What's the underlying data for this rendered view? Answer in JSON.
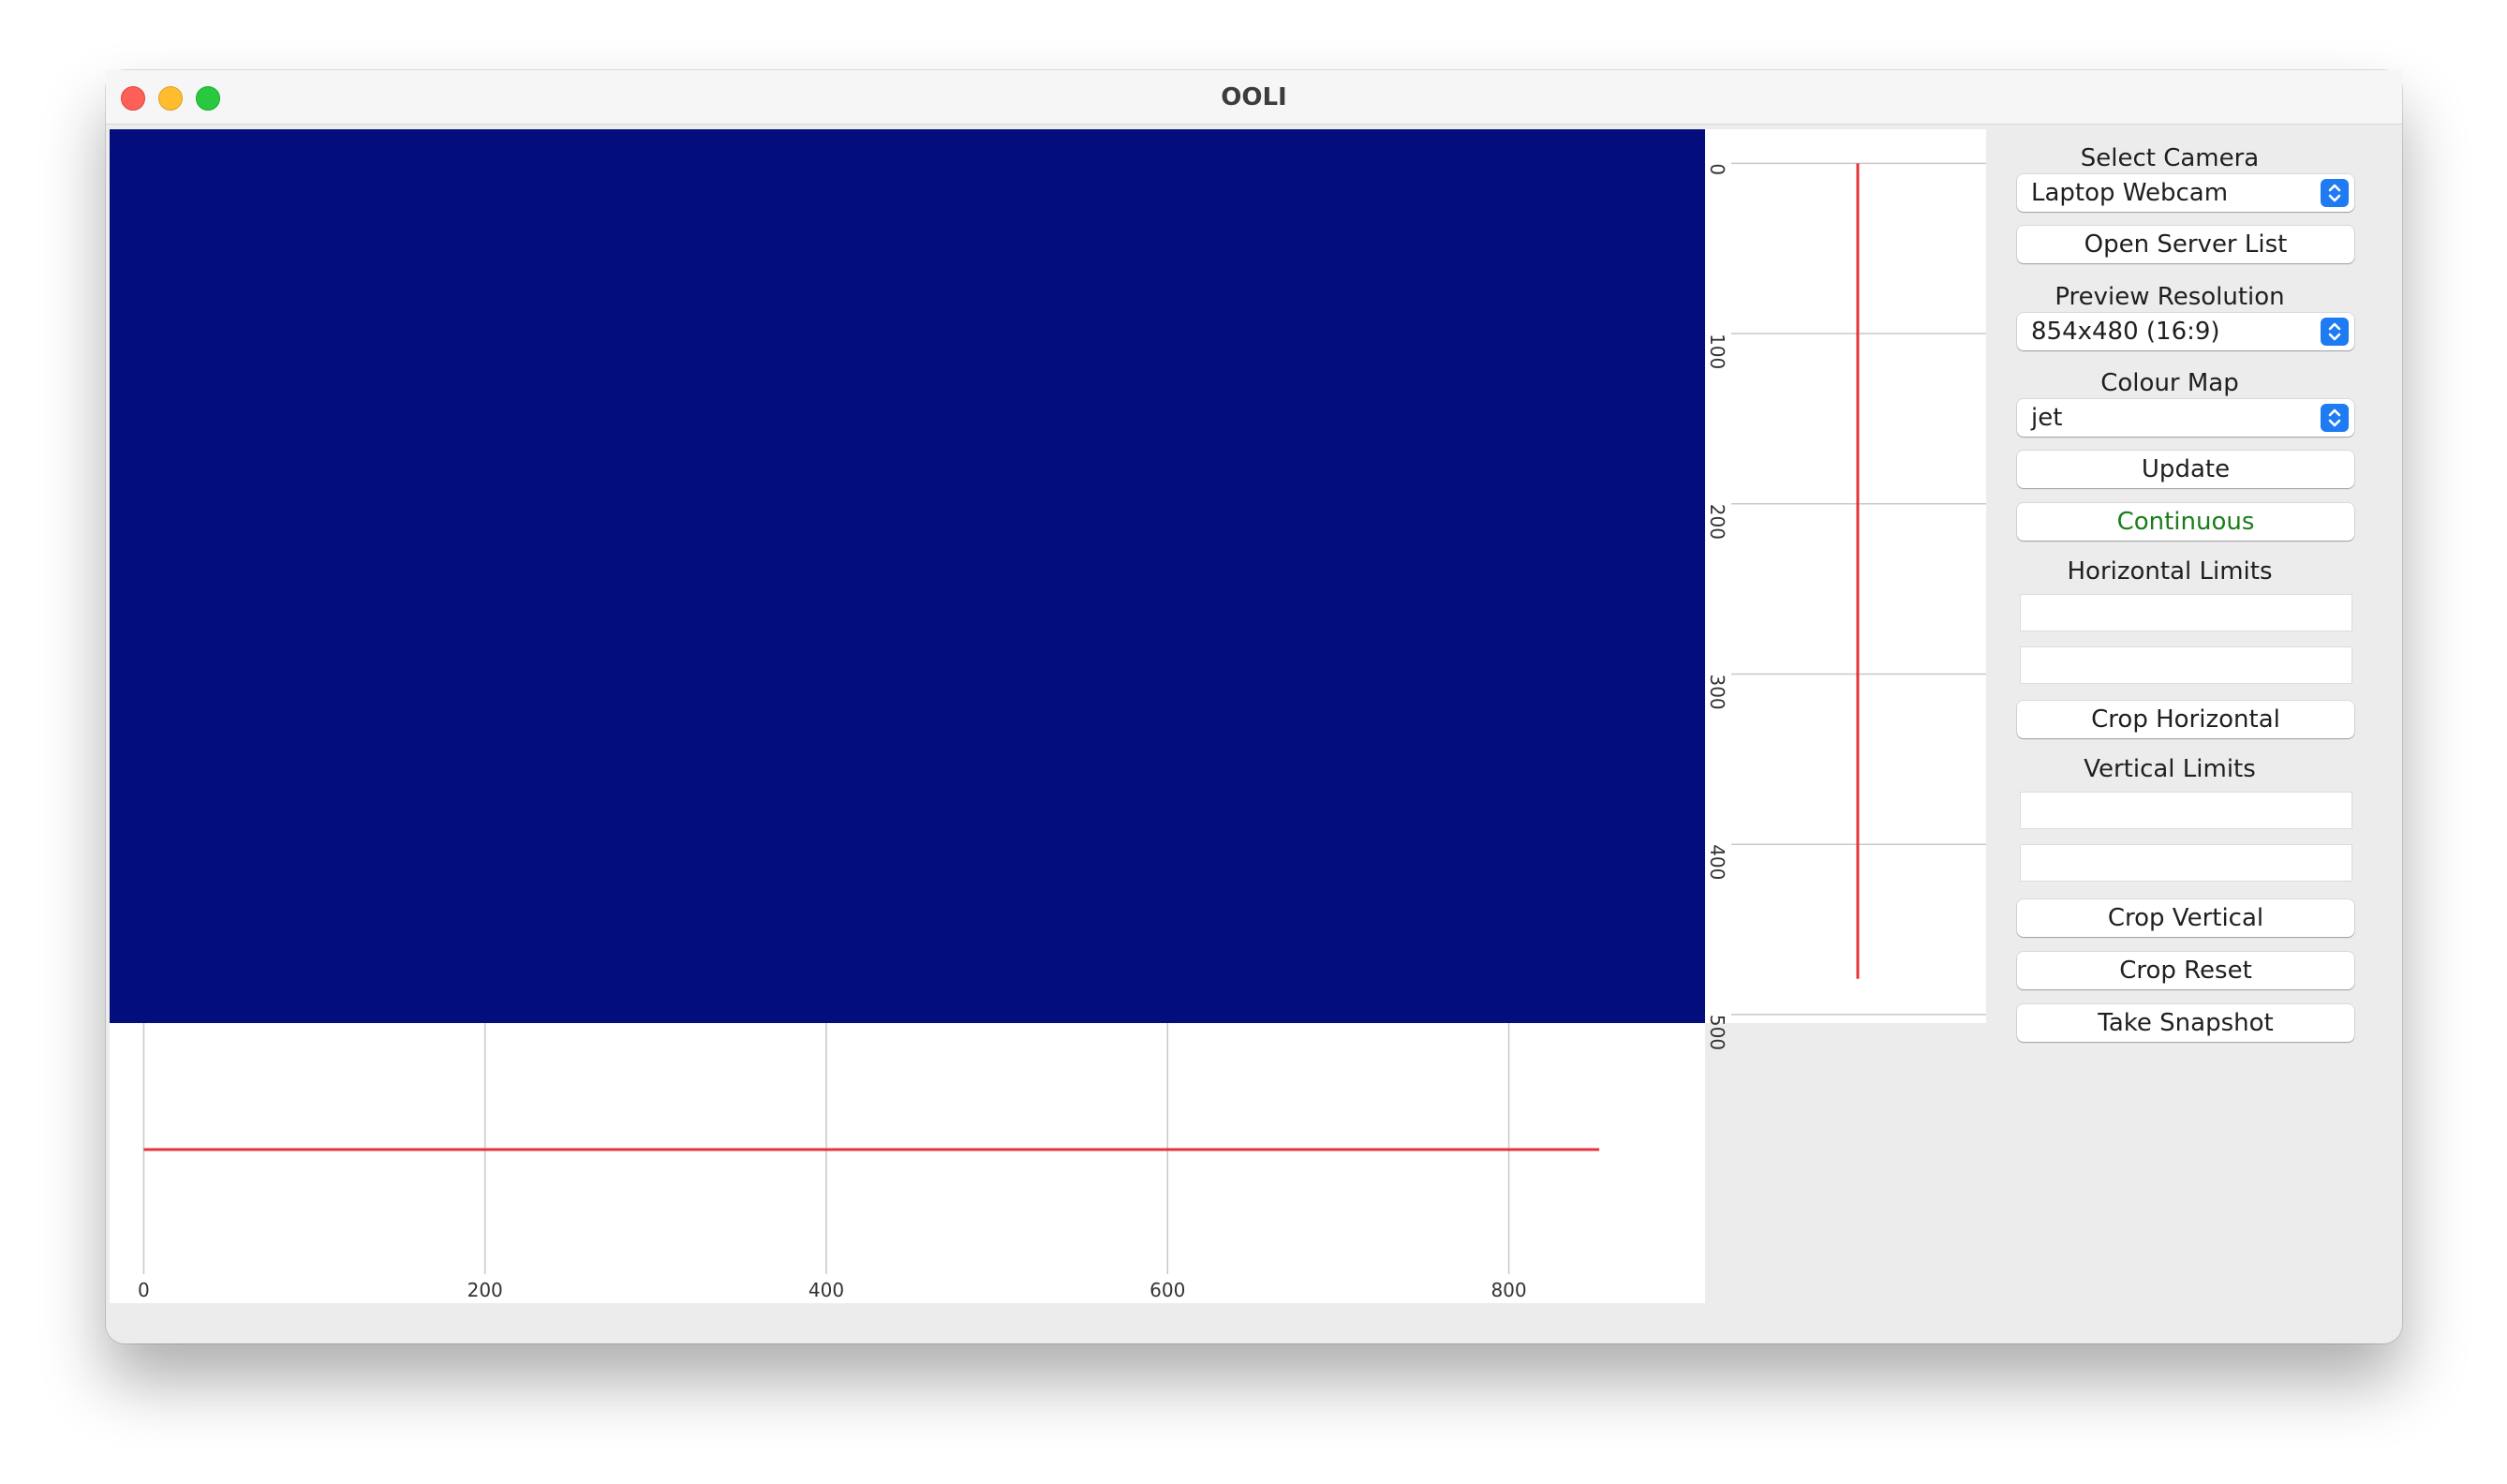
{
  "window": {
    "title": "OOLI"
  },
  "preview": {
    "background": "#030d7b",
    "trace_color": "#e5333b"
  },
  "horizontal_profile": {
    "x_ticks": [
      "0",
      "200",
      "400",
      "600",
      "800"
    ],
    "x_tick_values": [
      0,
      200,
      400,
      600,
      800
    ],
    "x_range": [
      -20,
      915
    ],
    "profile_x_range": [
      0,
      853
    ],
    "profile_level": 0
  },
  "vertical_profile": {
    "y_ticks": [
      "0",
      "100",
      "200",
      "300",
      "400",
      "500"
    ],
    "y_tick_values": [
      0,
      100,
      200,
      300,
      400,
      500
    ],
    "y_range": [
      -20,
      505
    ],
    "profile_y_range": [
      0,
      479
    ],
    "profile_level": 0
  },
  "sidebar": {
    "select_camera_label": "Select Camera",
    "camera_value": "Laptop Webcam",
    "open_server_list": "Open Server List",
    "preview_resolution_label": "Preview Resolution",
    "resolution_value": "854x480 (16:9)",
    "colour_map_label": "Colour Map",
    "colour_map_value": "jet",
    "update": "Update",
    "continuous": "Continuous",
    "continuous_color": "#1a7d1a",
    "horizontal_limits_label": "Horizontal Limits",
    "horizontal_min": "",
    "horizontal_max": "",
    "crop_horizontal": "Crop Horizontal",
    "vertical_limits_label": "Vertical Limits",
    "vertical_min": "",
    "vertical_max": "",
    "crop_vertical": "Crop Vertical",
    "crop_reset": "Crop Reset",
    "take_snapshot": "Take Snapshot"
  },
  "icons": {
    "close": "close-traffic-light-icon",
    "minimize": "minimize-traffic-light-icon",
    "maximize": "maximize-traffic-light-icon",
    "select_chevron": "chevron-up-down-icon"
  }
}
